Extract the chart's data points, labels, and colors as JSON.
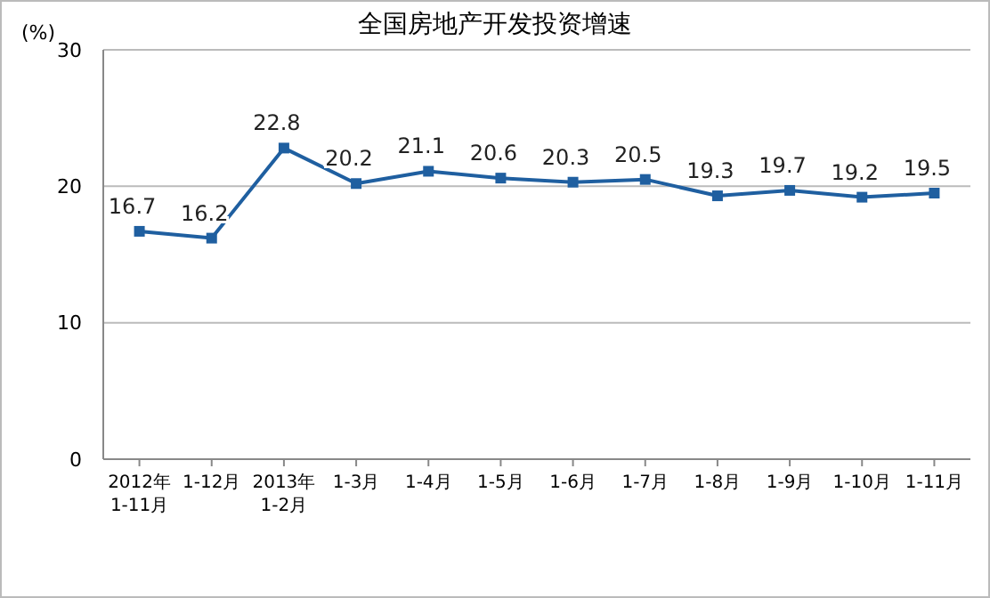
{
  "chart_data": {
    "type": "line",
    "title": "全国房地产开发投资增速",
    "ylabel": "(%)",
    "categories": [
      "2012年\n1-11月",
      "1-12月",
      "2013年\n1-2月",
      "1-3月",
      "1-4月",
      "1-5月",
      "1-6月",
      "1-7月",
      "1-8月",
      "1-9月",
      "1-10月",
      "1-11月"
    ],
    "series": [
      {
        "color": "#1f5fa0",
        "values": [
          16.7,
          16.2,
          22.8,
          20.2,
          21.1,
          20.6,
          20.3,
          20.5,
          19.3,
          19.7,
          19.2,
          19.5
        ]
      }
    ],
    "ylim": [
      0,
      30
    ],
    "yticks": [
      0,
      10,
      20,
      30
    ],
    "grid": "y",
    "marker": "square",
    "data_labels": true
  }
}
